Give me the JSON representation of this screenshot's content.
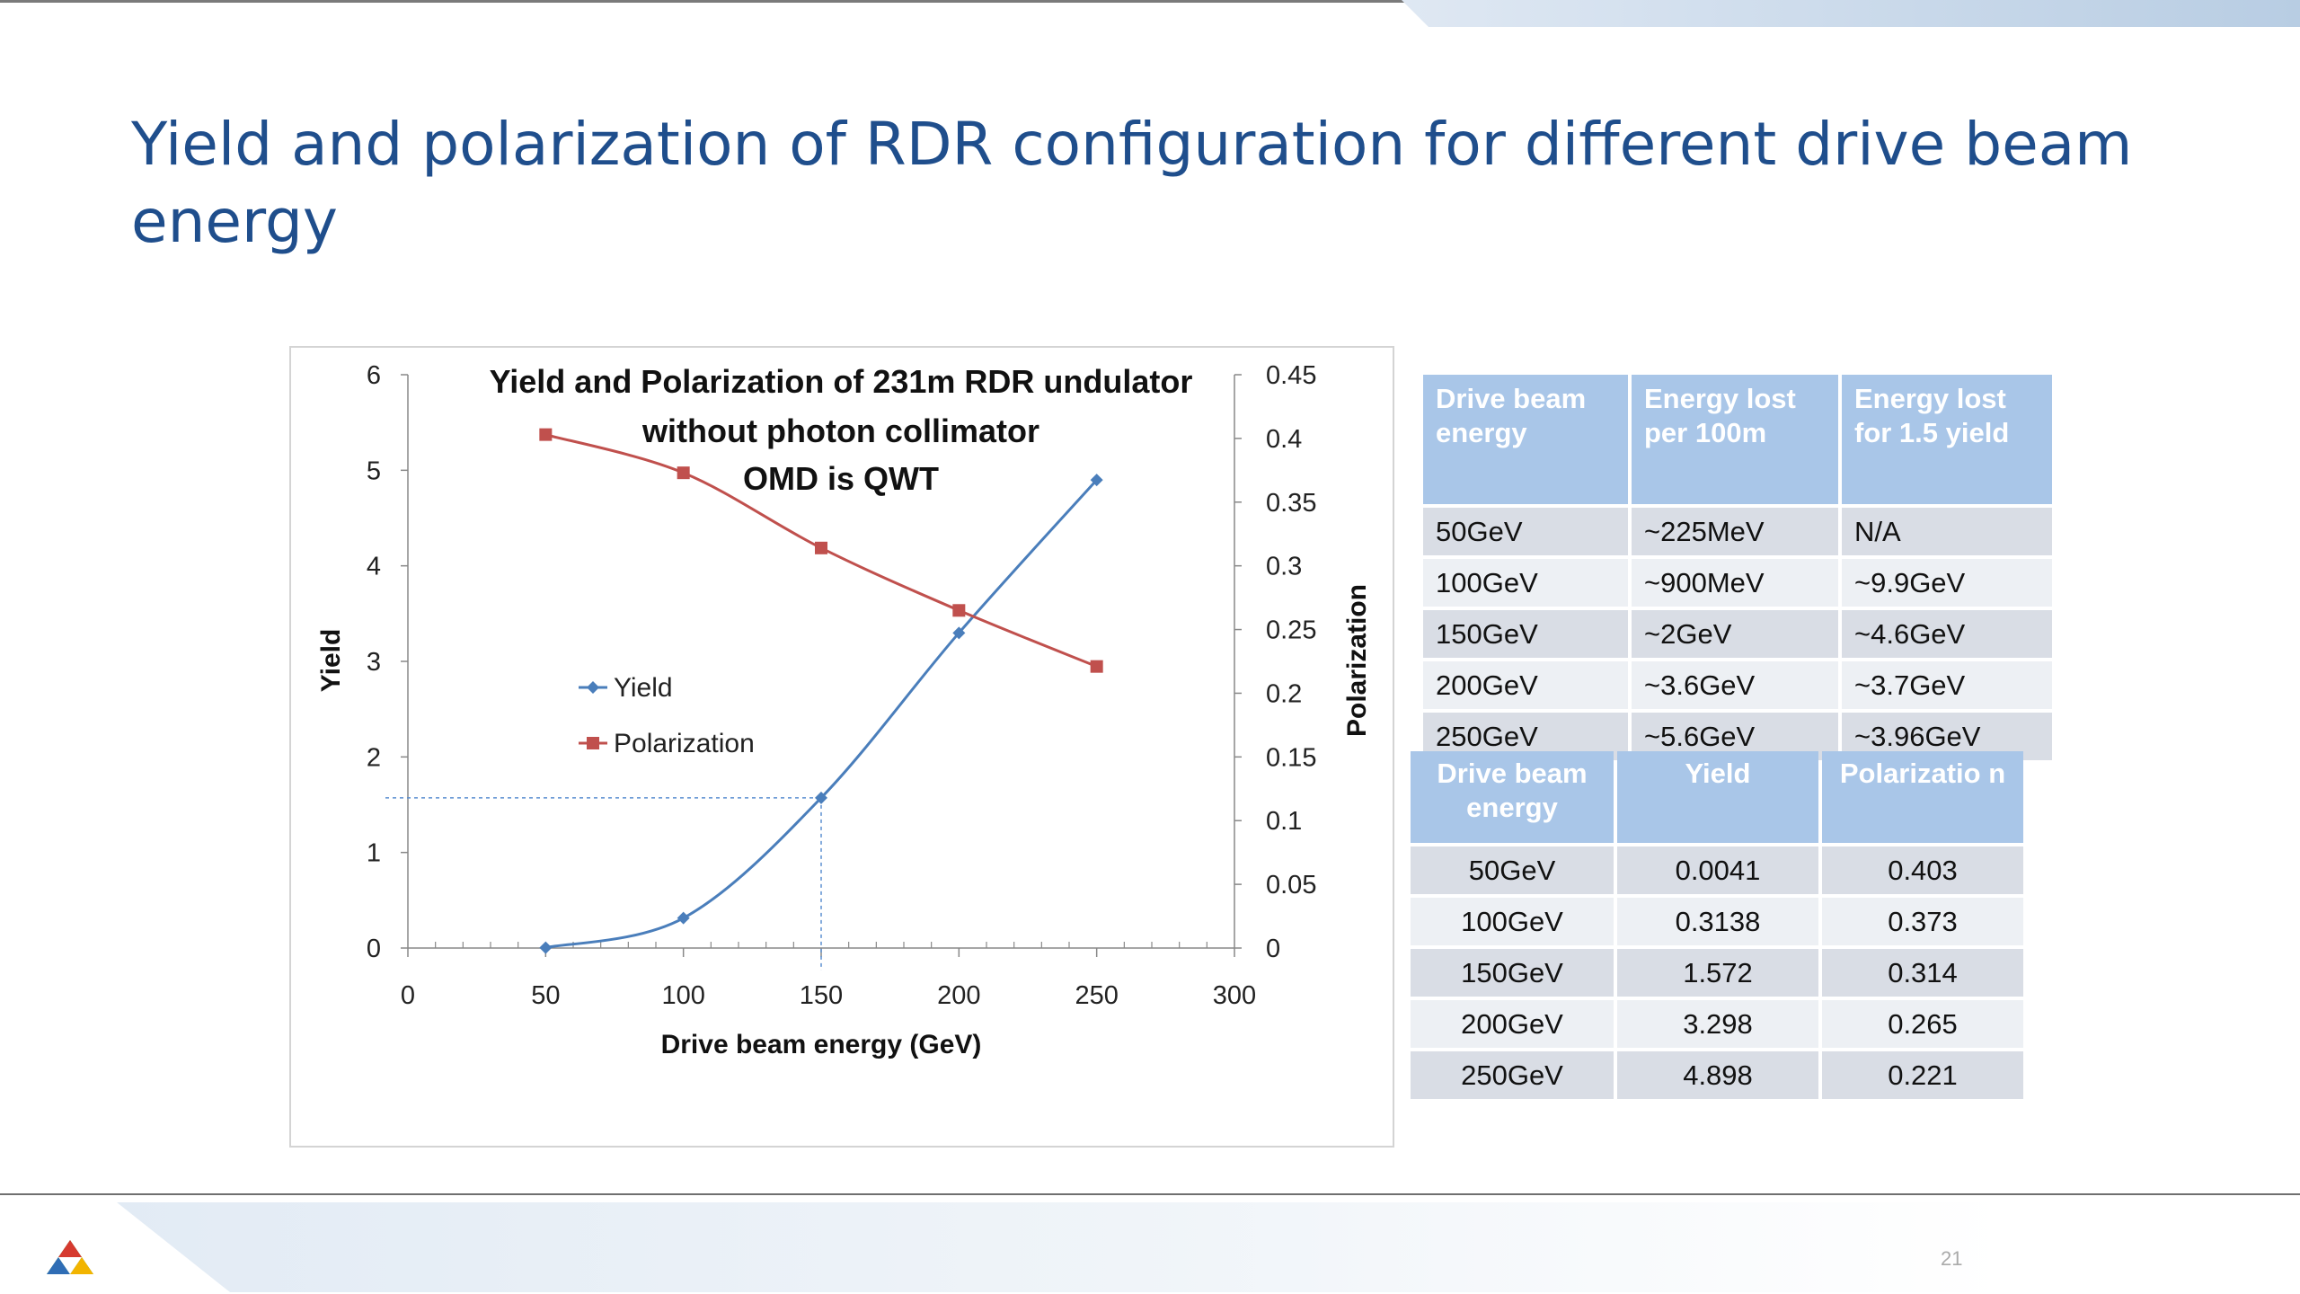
{
  "slide": {
    "title": "Yield and polarization of RDR configuration for different drive beam energy",
    "page_number": "21"
  },
  "chart_data": {
    "type": "line",
    "title_lines": [
      "Yield and Polarization of 231m RDR undulator",
      "without photon collimator",
      "OMD is QWT"
    ],
    "xlabel": "Drive beam energy (GeV)",
    "ylabel_left": "Yield",
    "ylabel_right": "Polarization",
    "x": [
      50,
      100,
      150,
      200,
      250
    ],
    "xlim": [
      0,
      300
    ],
    "xticks": [
      "0",
      "50",
      "100",
      "150",
      "200",
      "250",
      "300"
    ],
    "ylim_left": [
      0,
      6
    ],
    "yticks_left": [
      "0",
      "1",
      "2",
      "3",
      "4",
      "5",
      "6"
    ],
    "ylim_right": [
      0,
      0.45
    ],
    "yticks_right": [
      "0",
      "0.05",
      "0.1",
      "0.15",
      "0.2",
      "0.25",
      "0.3",
      "0.35",
      "0.4",
      "0.45"
    ],
    "series": [
      {
        "name": "Yield",
        "axis": "left",
        "color": "#4a7ebb",
        "marker": "diamond",
        "values": [
          0.0041,
          0.3138,
          1.572,
          3.298,
          4.898
        ]
      },
      {
        "name": "Polarization",
        "axis": "right",
        "color": "#c0504d",
        "marker": "square",
        "values": [
          0.403,
          0.373,
          0.314,
          0.265,
          0.221
        ]
      }
    ],
    "reference_point": {
      "x": 150,
      "y": 1.572
    },
    "legend_placement": "center-left",
    "grid": false
  },
  "table1": {
    "headers": [
      "Drive beam energy",
      "Energy lost per 100m",
      "Energy lost for 1.5 yield"
    ],
    "rows": [
      [
        "50GeV",
        "~225MeV",
        "N/A"
      ],
      [
        "100GeV",
        "~900MeV",
        "~9.9GeV"
      ],
      [
        "150GeV",
        "~2GeV",
        "~4.6GeV"
      ],
      [
        "200GeV",
        "~3.6GeV",
        "~3.7GeV"
      ],
      [
        "250GeV",
        "~5.6GeV",
        "~3.96GeV"
      ]
    ]
  },
  "table2": {
    "headers": [
      "Drive beam energy",
      "Yield",
      "Polarizatio n"
    ],
    "rows": [
      [
        "50GeV",
        "0.0041",
        "0.403"
      ],
      [
        "100GeV",
        "0.3138",
        "0.373"
      ],
      [
        "150GeV",
        "1.572",
        "0.314"
      ],
      [
        "200GeV",
        "3.298",
        "0.265"
      ],
      [
        "250GeV",
        "4.898",
        "0.221"
      ]
    ]
  },
  "colors": {
    "title": "#1f4e8c",
    "table_header": "#a9c6e8",
    "row_dark": "#d9dde5",
    "row_light": "#edf0f4"
  }
}
